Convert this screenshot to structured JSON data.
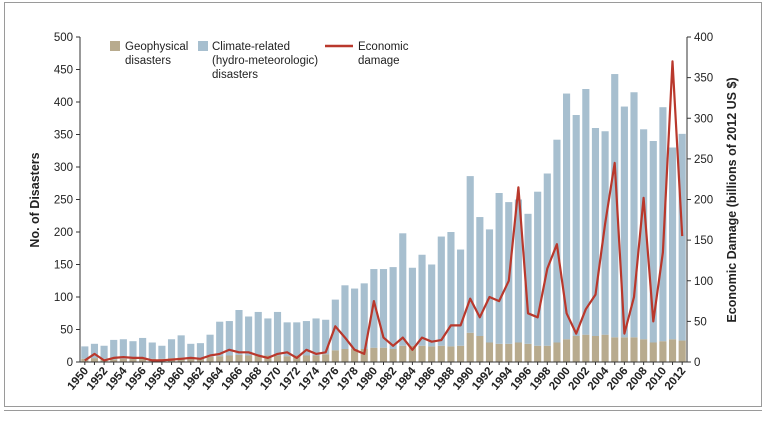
{
  "chart_data": {
    "type": "bar",
    "subtype": "stacked bar with line overlay on secondary axis",
    "x": [
      1950,
      1951,
      1952,
      1953,
      1954,
      1955,
      1956,
      1957,
      1958,
      1959,
      1960,
      1961,
      1962,
      1963,
      1964,
      1965,
      1966,
      1967,
      1968,
      1969,
      1970,
      1971,
      1972,
      1973,
      1974,
      1975,
      1976,
      1977,
      1978,
      1979,
      1980,
      1981,
      1982,
      1983,
      1984,
      1985,
      1986,
      1987,
      1988,
      1989,
      1990,
      1991,
      1992,
      1993,
      1994,
      1995,
      1996,
      1997,
      1998,
      1999,
      2000,
      2001,
      2002,
      2003,
      2004,
      2005,
      2006,
      2007,
      2008,
      2009,
      2010,
      2011,
      2012
    ],
    "x_tick_labels": [
      "1950",
      "1952",
      "1954",
      "1956",
      "1958",
      "1960",
      "1962",
      "1964",
      "1966",
      "1968",
      "1970",
      "1972",
      "1974",
      "1976",
      "1978",
      "1980",
      "1982",
      "1984",
      "1986",
      "1988",
      "1990",
      "1992",
      "1994",
      "1996",
      "1998",
      "2000",
      "2002",
      "2004",
      "2006",
      "2008",
      "2010",
      "2012"
    ],
    "series": [
      {
        "name": "Geophysical disasters",
        "kind": "bar",
        "axis": "left",
        "color": "#b8ab8e",
        "values": [
          5,
          6,
          5,
          4,
          5,
          5,
          6,
          5,
          5,
          6,
          7,
          6,
          6,
          8,
          9,
          10,
          11,
          10,
          10,
          10,
          10,
          9,
          10,
          10,
          10,
          12,
          18,
          20,
          20,
          20,
          22,
          22,
          20,
          25,
          25,
          25,
          24,
          25,
          24,
          25,
          45,
          40,
          30,
          28,
          28,
          30,
          28,
          25,
          25,
          30,
          35,
          40,
          42,
          40,
          42,
          38,
          38,
          38,
          35,
          30,
          32,
          35,
          33
        ]
      },
      {
        "name": "Climate-related (hydro-meteorologic) disasters",
        "kind": "bar",
        "axis": "left",
        "color": "#a7bfcf",
        "values": [
          19,
          22,
          20,
          30,
          30,
          27,
          31,
          25,
          20,
          29,
          34,
          22,
          23,
          34,
          53,
          53,
          69,
          60,
          67,
          57,
          67,
          52,
          51,
          53,
          57,
          53,
          78,
          98,
          93,
          101,
          121,
          121,
          126,
          173,
          120,
          140,
          126,
          168,
          176,
          148,
          241,
          183,
          174,
          232,
          218,
          220,
          200,
          237,
          265,
          312,
          378,
          340,
          378,
          320,
          313,
          405,
          355,
          377,
          323,
          310,
          360,
          295,
          318
        ]
      },
      {
        "name": "Economic damage",
        "kind": "line",
        "axis": "right",
        "color": "#b9382c",
        "values": [
          2,
          10,
          2,
          5,
          6,
          5,
          5,
          2,
          2,
          3,
          4,
          5,
          4,
          8,
          10,
          15,
          12,
          12,
          8,
          5,
          10,
          12,
          5,
          15,
          10,
          12,
          44,
          30,
          15,
          10,
          75,
          30,
          20,
          30,
          15,
          30,
          25,
          27,
          45,
          45,
          78,
          55,
          80,
          75,
          100,
          215,
          60,
          55,
          115,
          145,
          60,
          35,
          65,
          83,
          170,
          245,
          35,
          80,
          202,
          50,
          135,
          370,
          155
        ]
      }
    ],
    "title": "",
    "ylabel": "No. of Disasters",
    "ylabel_right": "Economic Damage (billions of 2012 US $)",
    "ylim": [
      0,
      500
    ],
    "ylim_right": [
      0,
      400
    ],
    "yticks": [
      0,
      50,
      100,
      150,
      200,
      250,
      300,
      350,
      400,
      450,
      500
    ],
    "yticks_right": [
      0,
      50,
      100,
      150,
      200,
      250,
      300,
      350,
      400
    ],
    "legend": {
      "placement": "top-left",
      "entries": [
        {
          "lines": [
            "Geophysical",
            "disasters"
          ],
          "color": "#b8ab8e",
          "kind": "bar"
        },
        {
          "lines": [
            "Climate-related",
            "(hydro-meteorologic)",
            "disasters"
          ],
          "color": "#a7bfcf",
          "kind": "bar"
        },
        {
          "lines": [
            "Economic",
            "damage"
          ],
          "color": "#b9382c",
          "kind": "line"
        }
      ]
    },
    "grid": false
  }
}
